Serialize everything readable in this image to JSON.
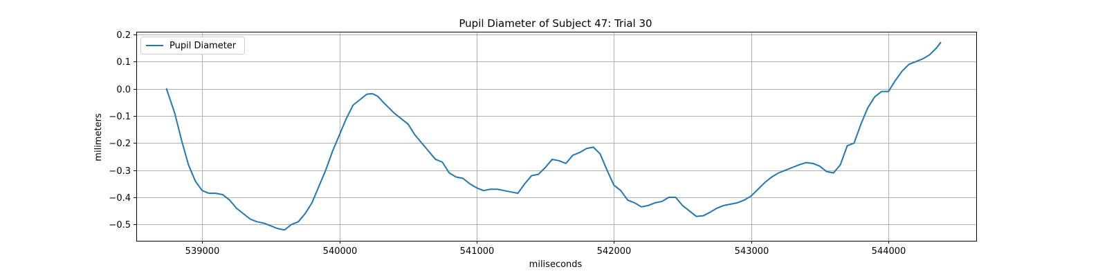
{
  "chart_data": {
    "type": "line",
    "title": "Pupil Diameter of Subject 47: Trial 30",
    "xlabel": "miliseconds",
    "ylabel": "milimeters",
    "xlim": [
      538520,
      544640
    ],
    "ylim": [
      -0.56,
      0.21
    ],
    "xticks": [
      539000,
      540000,
      541000,
      542000,
      543000,
      544000
    ],
    "yticks": [
      -0.5,
      -0.4,
      -0.3,
      -0.2,
      -0.1,
      0.0,
      0.1,
      0.2
    ],
    "xtick_labels": [
      "539000",
      "540000",
      "541000",
      "542000",
      "543000",
      "544000"
    ],
    "ytick_labels": [
      "−0.5",
      "−0.4",
      "−0.3",
      "−0.2",
      "−0.1",
      "0.0",
      "0.1",
      "0.2"
    ],
    "grid": true,
    "legend": {
      "position": "upper-left",
      "entries": [
        "Pupil Diameter"
      ]
    },
    "series": [
      {
        "name": "Pupil Diameter",
        "color": "#1f77b4",
        "x": [
          538740,
          538800,
          538850,
          538900,
          538950,
          539000,
          539050,
          539100,
          539150,
          539200,
          539250,
          539300,
          539350,
          539400,
          539450,
          539500,
          539550,
          539600,
          539650,
          539700,
          539750,
          539800,
          539850,
          539900,
          539950,
          540000,
          540050,
          540100,
          540150,
          540200,
          540240,
          540280,
          540320,
          540350,
          540400,
          540450,
          540500,
          540550,
          540600,
          540650,
          540700,
          540750,
          540800,
          540850,
          540900,
          540950,
          541000,
          541050,
          541100,
          541150,
          541200,
          541250,
          541300,
          541350,
          541400,
          541450,
          541500,
          541550,
          541600,
          541650,
          541700,
          541750,
          541800,
          541850,
          541900,
          541950,
          542000,
          542050,
          542100,
          542150,
          542200,
          542250,
          542300,
          542350,
          542400,
          542450,
          542500,
          542550,
          542600,
          542650,
          542700,
          542750,
          542800,
          542850,
          542900,
          542950,
          543000,
          543050,
          543100,
          543150,
          543200,
          543250,
          543300,
          543350,
          543400,
          543450,
          543500,
          543550,
          543600,
          543650,
          543700,
          543750,
          543800,
          543850,
          543900,
          543950,
          544000,
          544050,
          544100,
          544150,
          544200,
          544250,
          544300,
          544350,
          544380
        ],
        "y": [
          0.0,
          -0.09,
          -0.19,
          -0.28,
          -0.34,
          -0.375,
          -0.385,
          -0.385,
          -0.39,
          -0.41,
          -0.44,
          -0.46,
          -0.48,
          -0.49,
          -0.495,
          -0.505,
          -0.515,
          -0.52,
          -0.5,
          -0.49,
          -0.46,
          -0.42,
          -0.36,
          -0.3,
          -0.23,
          -0.17,
          -0.11,
          -0.06,
          -0.04,
          -0.02,
          -0.018,
          -0.028,
          -0.05,
          -0.065,
          -0.09,
          -0.11,
          -0.13,
          -0.17,
          -0.2,
          -0.23,
          -0.26,
          -0.27,
          -0.31,
          -0.325,
          -0.33,
          -0.35,
          -0.365,
          -0.375,
          -0.37,
          -0.37,
          -0.375,
          -0.38,
          -0.385,
          -0.35,
          -0.32,
          -0.315,
          -0.29,
          -0.26,
          -0.265,
          -0.275,
          -0.245,
          -0.235,
          -0.22,
          -0.215,
          -0.24,
          -0.3,
          -0.355,
          -0.375,
          -0.41,
          -0.42,
          -0.435,
          -0.43,
          -0.42,
          -0.415,
          -0.4,
          -0.4,
          -0.43,
          -0.45,
          -0.47,
          -0.468,
          -0.455,
          -0.44,
          -0.43,
          -0.425,
          -0.42,
          -0.41,
          -0.395,
          -0.37,
          -0.345,
          -0.325,
          -0.31,
          -0.3,
          -0.29,
          -0.28,
          -0.272,
          -0.275,
          -0.285,
          -0.305,
          -0.31,
          -0.28,
          -0.21,
          -0.2,
          -0.13,
          -0.07,
          -0.03,
          -0.01,
          -0.01,
          0.03,
          0.065,
          0.09,
          0.1,
          0.11,
          0.125,
          0.15,
          0.17
        ]
      }
    ]
  }
}
